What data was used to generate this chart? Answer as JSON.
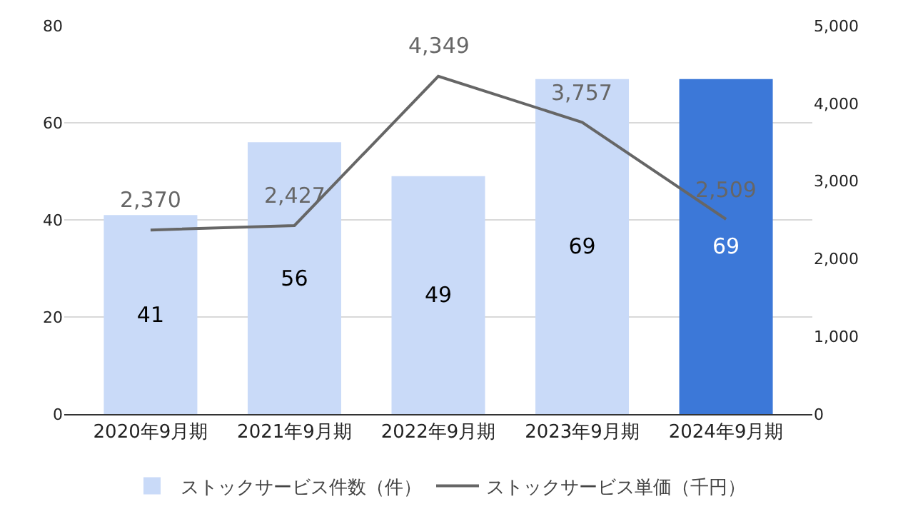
{
  "chart_data": {
    "type": "bar",
    "categories": [
      "2020年9月期",
      "2021年9月期",
      "2022年9月期",
      "2023年9月期",
      "2024年9月期"
    ],
    "series": [
      {
        "name": "ストックサービス件数（件）",
        "colors": [
          "#c9daf8",
          "#c9daf8",
          "#c9daf8",
          "#c9daf8",
          "#3c78d8"
        ],
        "color": "#c9daf8",
        "values": [
          41,
          56,
          49,
          69,
          69
        ]
      },
      {
        "name": "ストックサービス単価（千円）",
        "type": "line",
        "axis": "y2",
        "color": "#666666",
        "values": [
          2370,
          2427,
          4349,
          3757,
          2509
        ],
        "value_labels": [
          "2,370",
          "2,427",
          "4,349",
          "3,757",
          "2,509"
        ]
      }
    ],
    "data_labels": true,
    "ylim": [
      0,
      80
    ],
    "yticks": [
      0,
      20,
      40,
      60,
      80
    ],
    "y2lim": [
      0,
      5000
    ],
    "y2ticks": [
      0,
      {
        "value": 1000,
        "label": "1,000"
      },
      {
        "value": 2000,
        "label": "2,000"
      },
      {
        "value": 3000,
        "label": "3,000"
      },
      {
        "value": 4000,
        "label": "4,000"
      },
      {
        "value": 5000,
        "label": "5,000"
      }
    ],
    "grid": "y",
    "legend": "bottom",
    "marker": "none",
    "line_style": "solid"
  }
}
